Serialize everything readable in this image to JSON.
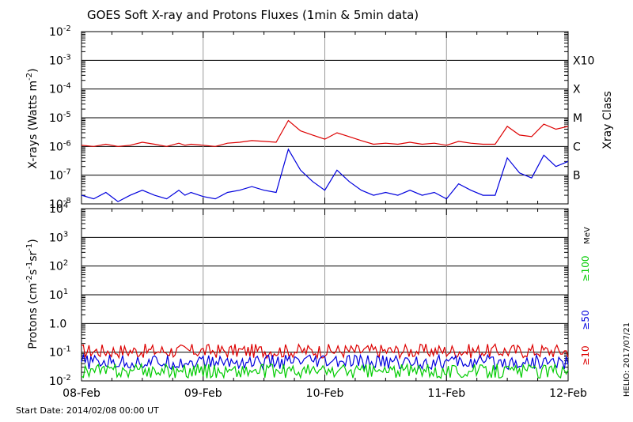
{
  "chart_data": [
    {
      "type": "line",
      "title": "GOES Soft X-ray and Protons Fluxes   (1min & 5min data)",
      "ylabel_main": "X-rays (Watts m",
      "ylabel_sup": "-2",
      "ylabel_end": ")",
      "yscale": "log",
      "ylim": [
        1e-08,
        0.01
      ],
      "y_ticks": [
        {
          "mant": "10",
          "exp": "-8"
        },
        {
          "mant": "10",
          "exp": "-7"
        },
        {
          "mant": "10",
          "exp": "-6"
        },
        {
          "mant": "10",
          "exp": "-5"
        },
        {
          "mant": "10",
          "exp": "-4"
        },
        {
          "mant": "10",
          "exp": "-3"
        },
        {
          "mant": "10",
          "exp": "-2"
        }
      ],
      "right_axis_label": "Xray Class",
      "classes": [
        {
          "label": "B",
          "value": 1e-07
        },
        {
          "label": "C",
          "value": 1e-06
        },
        {
          "label": "M",
          "value": 1e-05
        },
        {
          "label": "X",
          "value": 0.0001
        },
        {
          "label": "X10",
          "value": 0.001
        }
      ],
      "series": [
        {
          "color": "#dd0000",
          "x": [
            0.0,
            0.1,
            0.2,
            0.3,
            0.4,
            0.5,
            0.6,
            0.7,
            0.8,
            0.85,
            0.9,
            1.0,
            1.1,
            1.2,
            1.3,
            1.4,
            1.5,
            1.6,
            1.7,
            1.8,
            1.9,
            2.0,
            2.1,
            2.2,
            2.3,
            2.4,
            2.5,
            2.6,
            2.7,
            2.8,
            2.9,
            3.0,
            3.1,
            3.2,
            3.3,
            3.4,
            3.5,
            3.6,
            3.7,
            3.8,
            3.9,
            4.0
          ],
          "y": [
            1.1e-06,
            1e-06,
            1.2e-06,
            1e-06,
            1.1e-06,
            1.4e-06,
            1.2e-06,
            1e-06,
            1.3e-06,
            1.1e-06,
            1.2e-06,
            1.1e-06,
            1e-06,
            1.3e-06,
            1.4e-06,
            1.6e-06,
            1.5e-06,
            1.4e-06,
            8e-06,
            3.5e-06,
            2.5e-06,
            1.8e-06,
            3e-06,
            2.2e-06,
            1.6e-06,
            1.2e-06,
            1.3e-06,
            1.2e-06,
            1.4e-06,
            1.2e-06,
            1.3e-06,
            1.1e-06,
            1.5e-06,
            1.3e-06,
            1.2e-06,
            1.2e-06,
            5e-06,
            2.5e-06,
            2.2e-06,
            6e-06,
            4e-06,
            5e-06
          ]
        },
        {
          "color": "#0000dd",
          "x": [
            0.0,
            0.1,
            0.2,
            0.3,
            0.4,
            0.5,
            0.6,
            0.7,
            0.8,
            0.85,
            0.9,
            1.0,
            1.1,
            1.2,
            1.3,
            1.4,
            1.5,
            1.6,
            1.7,
            1.8,
            1.9,
            2.0,
            2.1,
            2.2,
            2.3,
            2.4,
            2.5,
            2.6,
            2.7,
            2.8,
            2.9,
            3.0,
            3.1,
            3.2,
            3.3,
            3.4,
            3.5,
            3.6,
            3.7,
            3.8,
            3.9,
            4.0
          ],
          "y": [
            2e-08,
            1.5e-08,
            2.5e-08,
            1.2e-08,
            2e-08,
            3e-08,
            2e-08,
            1.5e-08,
            3e-08,
            2e-08,
            2.5e-08,
            1.8e-08,
            1.5e-08,
            2.5e-08,
            3e-08,
            4e-08,
            3e-08,
            2.5e-08,
            8e-07,
            1.5e-07,
            6e-08,
            3e-08,
            1.5e-07,
            6e-08,
            3e-08,
            2e-08,
            2.5e-08,
            2e-08,
            3e-08,
            2e-08,
            2.5e-08,
            1.5e-08,
            5e-08,
            3e-08,
            2e-08,
            2e-08,
            4e-07,
            1.2e-07,
            8e-08,
            5e-07,
            2e-07,
            3e-07
          ]
        }
      ]
    },
    {
      "type": "line",
      "ylabel_main": "Protons (cm",
      "ylabel_sup": "-2",
      "ylabel_mid": "s",
      "ylabel_sup2": "-1",
      "ylabel_mid2": "sr",
      "ylabel_sup3": "-1",
      "ylabel_end": ")",
      "yscale": "log",
      "ylim": [
        0.01,
        10000
      ],
      "y_ticks": [
        {
          "mant": "10",
          "exp": "-2"
        },
        {
          "mant": "10",
          "exp": "-1"
        },
        {
          "mant": "1.0",
          "exp": ""
        },
        {
          "mant": "10",
          "exp": "1"
        },
        {
          "mant": "10",
          "exp": "2"
        },
        {
          "mant": "10",
          "exp": "3"
        },
        {
          "mant": "10",
          "exp": "4"
        }
      ],
      "threshold_value": 10,
      "unit_label": "MeV",
      "legend": [
        {
          "label": "≥100",
          "color": "#00cc00"
        },
        {
          "label": "≥50",
          "color": "#0000dd"
        },
        {
          "label": "≥10",
          "color": "#dd0000"
        }
      ],
      "series": [
        {
          "name": "≥10",
          "color": "#dd0000",
          "x": [
            0.0,
            4.0
          ],
          "y": [
            0.11,
            0.11
          ]
        },
        {
          "name": "≥50",
          "color": "#0000dd",
          "x": [
            0.0,
            4.0
          ],
          "y": [
            0.045,
            0.045
          ]
        },
        {
          "name": "≥100",
          "color": "#00cc00",
          "x": [
            0.0,
            4.0
          ],
          "y": [
            0.022,
            0.022
          ]
        }
      ]
    }
  ],
  "x_axis": {
    "ticks": [
      "08-Feb",
      "09-Feb",
      "10-Feb",
      "11-Feb",
      "12-Feb"
    ],
    "range_days": [
      0,
      4
    ]
  },
  "footer": {
    "start_date": "Start Date: 2014/02/08 00:00 UT",
    "credit": "HELIO: 2017/07/21"
  }
}
